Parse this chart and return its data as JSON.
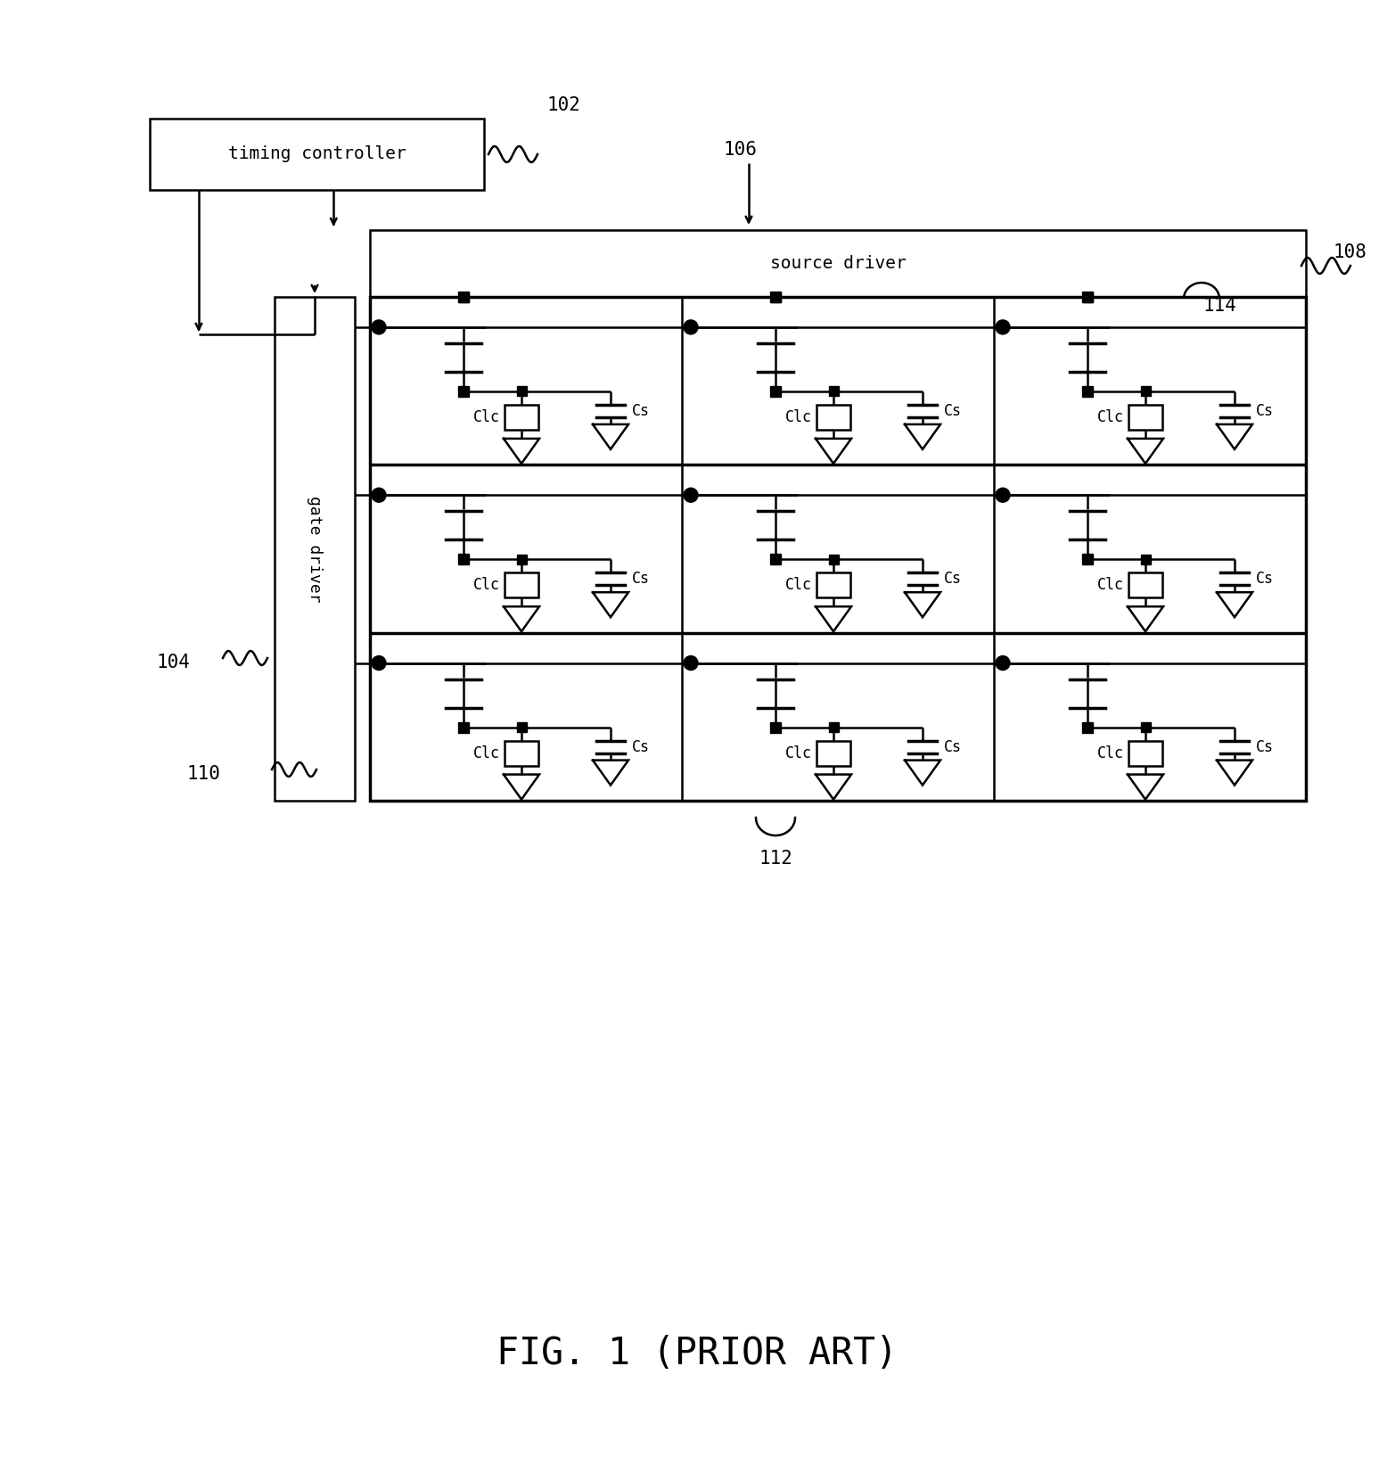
{
  "bg_color": "#ffffff",
  "line_color": "#000000",
  "title": "FIG. 1 (PRIOR ART)",
  "title_fontsize": 30,
  "labels": {
    "timing_controller": "timing controller",
    "source_driver": "source driver",
    "gate_driver": "gate driver",
    "Clc": "Clc",
    "Cs": "Cs"
  },
  "ref_numbers": {
    "r102": "102",
    "r104": "104",
    "r106": "106",
    "r108": "108",
    "r110": "110",
    "r112": "112",
    "r114": "114"
  },
  "font_size_box": 14,
  "font_size_ref": 15,
  "font_size_cell": 12,
  "font_size_gate": 13
}
